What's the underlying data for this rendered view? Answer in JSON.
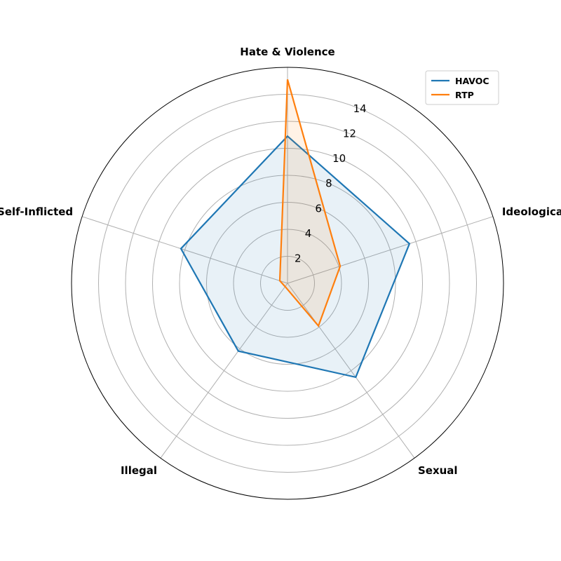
{
  "chart_data": {
    "type": "radar",
    "categories": [
      "Hate & Violence",
      "Ideological Harm",
      "Sexual",
      "Illegal",
      "Self-Inflicted"
    ],
    "series": [
      {
        "name": "HAVOC",
        "values": [
          10.9,
          9.5,
          8.6,
          6.2,
          8.3
        ],
        "color": "#1f77b4"
      },
      {
        "name": "RTP",
        "values": [
          15.1,
          4.1,
          3.9,
          0.3,
          0.6
        ],
        "color": "#ff7f0e"
      }
    ],
    "radial_ticks": [
      2,
      4,
      6,
      8,
      10,
      12,
      14
    ],
    "rmax": 16,
    "grid": true,
    "legend_position": "top-right"
  }
}
